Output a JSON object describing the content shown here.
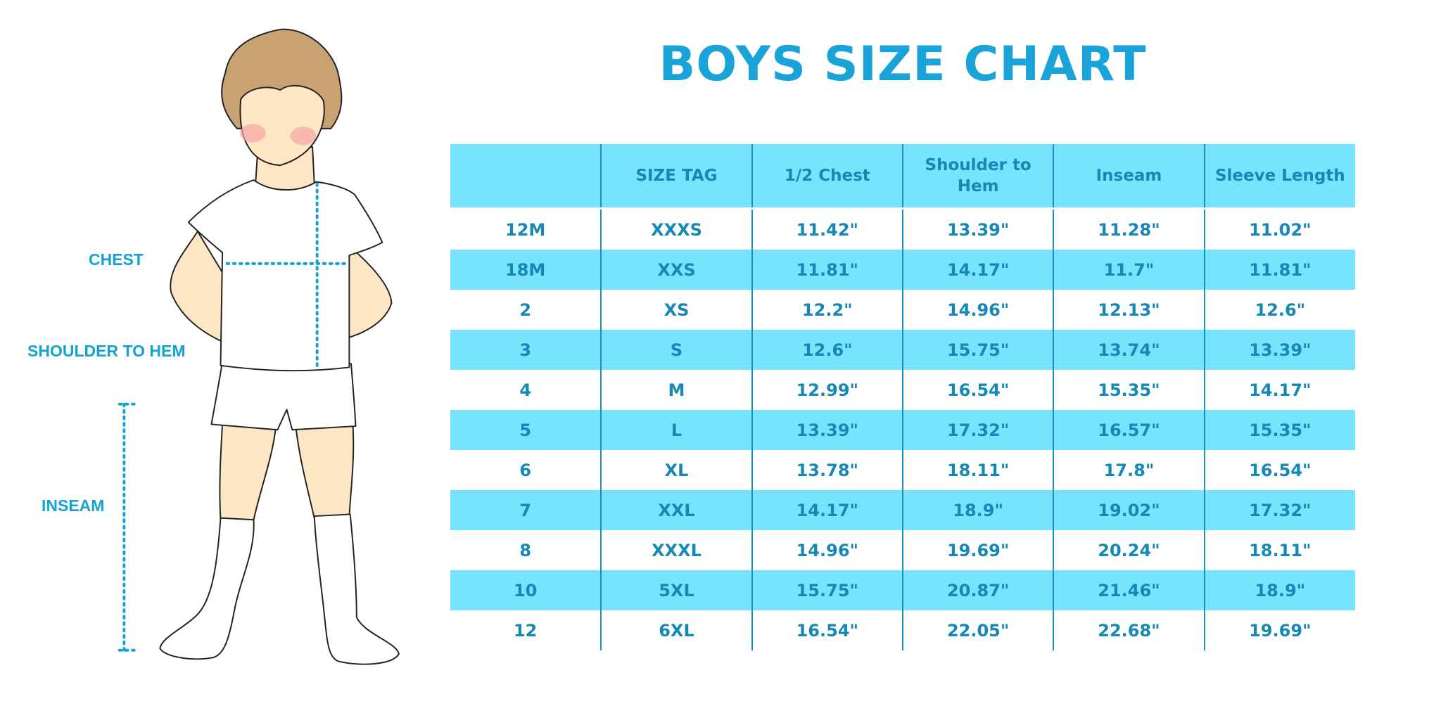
{
  "title": "BOYS SIZE CHART",
  "colors": {
    "accent": "#1aa3d9",
    "row_highlight": "#78e3fd",
    "text": "#1688b5"
  },
  "measure_labels": {
    "chest": "CHEST",
    "shoulder_to_hem": "SHOULDER TO HEM",
    "inseam": "INSEAM"
  },
  "table": {
    "headers": [
      "",
      "SIZE TAG",
      "1/2 Chest",
      "Shoulder to Hem",
      "Inseam",
      "Sleeve Length"
    ],
    "rows": [
      [
        "12M",
        "XXXS",
        "11.42\"",
        "13.39\"",
        "11.28\"",
        "11.02\""
      ],
      [
        "18M",
        "XXS",
        "11.81\"",
        "14.17\"",
        "11.7\"",
        "11.81\""
      ],
      [
        "2",
        "XS",
        "12.2\"",
        "14.96\"",
        "12.13\"",
        "12.6\""
      ],
      [
        "3",
        "S",
        "12.6\"",
        "15.75\"",
        "13.74\"",
        "13.39\""
      ],
      [
        "4",
        "M",
        "12.99\"",
        "16.54\"",
        "15.35\"",
        "14.17\""
      ],
      [
        "5",
        "L",
        "13.39\"",
        "17.32\"",
        "16.57\"",
        "15.35\""
      ],
      [
        "6",
        "XL",
        "13.78\"",
        "18.11\"",
        "17.8\"",
        "16.54\""
      ],
      [
        "7",
        "XXL",
        "14.17\"",
        "18.9\"",
        "19.02\"",
        "17.32\""
      ],
      [
        "8",
        "XXXL",
        "14.96\"",
        "19.69\"",
        "20.24\"",
        "18.11\""
      ],
      [
        "10",
        "5XL",
        "15.75\"",
        "20.87\"",
        "21.46\"",
        "18.9\""
      ],
      [
        "12",
        "6XL",
        "16.54\"",
        "22.05\"",
        "22.68\"",
        "19.69\""
      ]
    ]
  }
}
